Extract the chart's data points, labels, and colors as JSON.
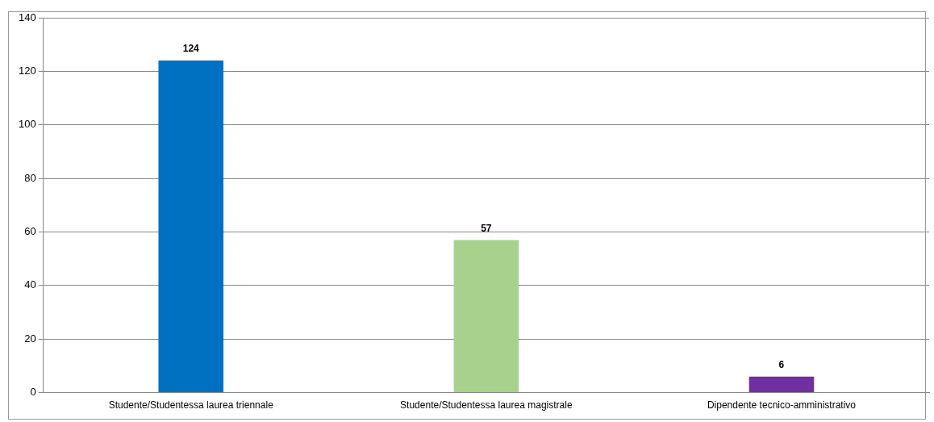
{
  "chart_data": {
    "type": "bar",
    "categories": [
      "Studente/Studentessa laurea triennale",
      "Studente/Studentessa laurea magistrale",
      "Dipendente tecnico-amministrativo"
    ],
    "values": [
      124,
      57,
      6
    ],
    "colors": [
      "#0070c0",
      "#a9d18e",
      "#7030a0"
    ],
    "ylim": [
      0,
      140
    ],
    "yticks": [
      0,
      20,
      40,
      60,
      80,
      100,
      120,
      140
    ],
    "grid": "y",
    "legend": false,
    "data_labels": true
  }
}
